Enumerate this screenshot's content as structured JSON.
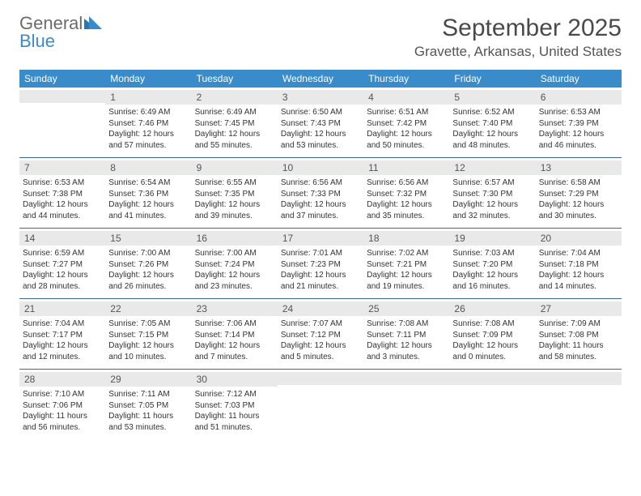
{
  "brand": {
    "g": "General",
    "b": "Blue"
  },
  "title": "September 2025",
  "location": "Gravette, Arkansas, United States",
  "header_bg": "#3a8bc9",
  "daynum_bg": "#e9e9e9",
  "sep_color": "#3a6a94",
  "weekdays": [
    "Sunday",
    "Monday",
    "Tuesday",
    "Wednesday",
    "Thursday",
    "Friday",
    "Saturday"
  ],
  "weeks": [
    [
      {
        "n": "",
        "sr": "",
        "ss": "",
        "dl": ""
      },
      {
        "n": "1",
        "sr": "Sunrise: 6:49 AM",
        "ss": "Sunset: 7:46 PM",
        "dl": "Daylight: 12 hours and 57 minutes."
      },
      {
        "n": "2",
        "sr": "Sunrise: 6:49 AM",
        "ss": "Sunset: 7:45 PM",
        "dl": "Daylight: 12 hours and 55 minutes."
      },
      {
        "n": "3",
        "sr": "Sunrise: 6:50 AM",
        "ss": "Sunset: 7:43 PM",
        "dl": "Daylight: 12 hours and 53 minutes."
      },
      {
        "n": "4",
        "sr": "Sunrise: 6:51 AM",
        "ss": "Sunset: 7:42 PM",
        "dl": "Daylight: 12 hours and 50 minutes."
      },
      {
        "n": "5",
        "sr": "Sunrise: 6:52 AM",
        "ss": "Sunset: 7:40 PM",
        "dl": "Daylight: 12 hours and 48 minutes."
      },
      {
        "n": "6",
        "sr": "Sunrise: 6:53 AM",
        "ss": "Sunset: 7:39 PM",
        "dl": "Daylight: 12 hours and 46 minutes."
      }
    ],
    [
      {
        "n": "7",
        "sr": "Sunrise: 6:53 AM",
        "ss": "Sunset: 7:38 PM",
        "dl": "Daylight: 12 hours and 44 minutes."
      },
      {
        "n": "8",
        "sr": "Sunrise: 6:54 AM",
        "ss": "Sunset: 7:36 PM",
        "dl": "Daylight: 12 hours and 41 minutes."
      },
      {
        "n": "9",
        "sr": "Sunrise: 6:55 AM",
        "ss": "Sunset: 7:35 PM",
        "dl": "Daylight: 12 hours and 39 minutes."
      },
      {
        "n": "10",
        "sr": "Sunrise: 6:56 AM",
        "ss": "Sunset: 7:33 PM",
        "dl": "Daylight: 12 hours and 37 minutes."
      },
      {
        "n": "11",
        "sr": "Sunrise: 6:56 AM",
        "ss": "Sunset: 7:32 PM",
        "dl": "Daylight: 12 hours and 35 minutes."
      },
      {
        "n": "12",
        "sr": "Sunrise: 6:57 AM",
        "ss": "Sunset: 7:30 PM",
        "dl": "Daylight: 12 hours and 32 minutes."
      },
      {
        "n": "13",
        "sr": "Sunrise: 6:58 AM",
        "ss": "Sunset: 7:29 PM",
        "dl": "Daylight: 12 hours and 30 minutes."
      }
    ],
    [
      {
        "n": "14",
        "sr": "Sunrise: 6:59 AM",
        "ss": "Sunset: 7:27 PM",
        "dl": "Daylight: 12 hours and 28 minutes."
      },
      {
        "n": "15",
        "sr": "Sunrise: 7:00 AM",
        "ss": "Sunset: 7:26 PM",
        "dl": "Daylight: 12 hours and 26 minutes."
      },
      {
        "n": "16",
        "sr": "Sunrise: 7:00 AM",
        "ss": "Sunset: 7:24 PM",
        "dl": "Daylight: 12 hours and 23 minutes."
      },
      {
        "n": "17",
        "sr": "Sunrise: 7:01 AM",
        "ss": "Sunset: 7:23 PM",
        "dl": "Daylight: 12 hours and 21 minutes."
      },
      {
        "n": "18",
        "sr": "Sunrise: 7:02 AM",
        "ss": "Sunset: 7:21 PM",
        "dl": "Daylight: 12 hours and 19 minutes."
      },
      {
        "n": "19",
        "sr": "Sunrise: 7:03 AM",
        "ss": "Sunset: 7:20 PM",
        "dl": "Daylight: 12 hours and 16 minutes."
      },
      {
        "n": "20",
        "sr": "Sunrise: 7:04 AM",
        "ss": "Sunset: 7:18 PM",
        "dl": "Daylight: 12 hours and 14 minutes."
      }
    ],
    [
      {
        "n": "21",
        "sr": "Sunrise: 7:04 AM",
        "ss": "Sunset: 7:17 PM",
        "dl": "Daylight: 12 hours and 12 minutes."
      },
      {
        "n": "22",
        "sr": "Sunrise: 7:05 AM",
        "ss": "Sunset: 7:15 PM",
        "dl": "Daylight: 12 hours and 10 minutes."
      },
      {
        "n": "23",
        "sr": "Sunrise: 7:06 AM",
        "ss": "Sunset: 7:14 PM",
        "dl": "Daylight: 12 hours and 7 minutes."
      },
      {
        "n": "24",
        "sr": "Sunrise: 7:07 AM",
        "ss": "Sunset: 7:12 PM",
        "dl": "Daylight: 12 hours and 5 minutes."
      },
      {
        "n": "25",
        "sr": "Sunrise: 7:08 AM",
        "ss": "Sunset: 7:11 PM",
        "dl": "Daylight: 12 hours and 3 minutes."
      },
      {
        "n": "26",
        "sr": "Sunrise: 7:08 AM",
        "ss": "Sunset: 7:09 PM",
        "dl": "Daylight: 12 hours and 0 minutes."
      },
      {
        "n": "27",
        "sr": "Sunrise: 7:09 AM",
        "ss": "Sunset: 7:08 PM",
        "dl": "Daylight: 11 hours and 58 minutes."
      }
    ],
    [
      {
        "n": "28",
        "sr": "Sunrise: 7:10 AM",
        "ss": "Sunset: 7:06 PM",
        "dl": "Daylight: 11 hours and 56 minutes."
      },
      {
        "n": "29",
        "sr": "Sunrise: 7:11 AM",
        "ss": "Sunset: 7:05 PM",
        "dl": "Daylight: 11 hours and 53 minutes."
      },
      {
        "n": "30",
        "sr": "Sunrise: 7:12 AM",
        "ss": "Sunset: 7:03 PM",
        "dl": "Daylight: 11 hours and 51 minutes."
      },
      {
        "n": "",
        "sr": "",
        "ss": "",
        "dl": ""
      },
      {
        "n": "",
        "sr": "",
        "ss": "",
        "dl": ""
      },
      {
        "n": "",
        "sr": "",
        "ss": "",
        "dl": ""
      },
      {
        "n": "",
        "sr": "",
        "ss": "",
        "dl": ""
      }
    ]
  ]
}
